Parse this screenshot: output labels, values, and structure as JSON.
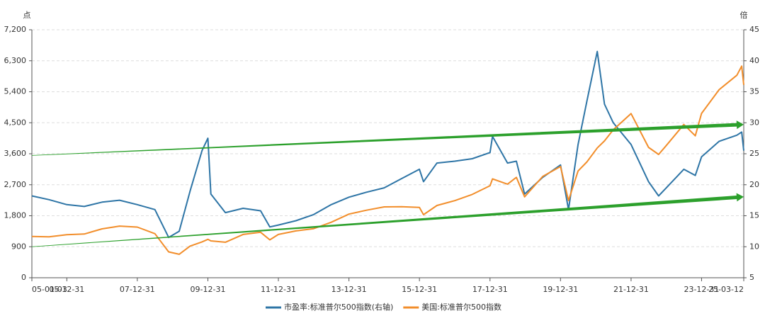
{
  "chart_data": {
    "type": "line",
    "y_unit": "点",
    "y2_unit": "倍",
    "x": [
      "05-01-03",
      "05-06-30",
      "05-12-31",
      "06-06-30",
      "06-12-31",
      "07-06-30",
      "07-12-31",
      "08-06-30",
      "08-11-20",
      "09-03-09",
      "09-06-30",
      "09-10-31",
      "09-12-31",
      "10-01-31",
      "10-06-30",
      "10-12-31",
      "11-06-30",
      "11-10-03",
      "11-12-31",
      "12-06-30",
      "12-12-31",
      "13-06-30",
      "13-12-31",
      "14-06-30",
      "14-12-31",
      "15-06-30",
      "15-12-31",
      "16-02-11",
      "16-06-30",
      "16-12-31",
      "17-06-30",
      "17-12-31",
      "18-01-26",
      "18-06-30",
      "18-09-30",
      "18-12-24",
      "19-06-30",
      "19-12-31",
      "20-03-23",
      "20-06-30",
      "20-09-30",
      "21-01-15",
      "21-03-31",
      "21-06-30",
      "21-12-31",
      "22-06-30",
      "22-10-12",
      "22-12-31",
      "23-06-30",
      "23-10-27",
      "23-12-31",
      "24-06-30",
      "24-12-31",
      "25-02-19",
      "25-03-12"
    ],
    "series": [
      {
        "name": "市盈率:标准普尔500指数(右轴)",
        "color": "#2e75a6",
        "axis": "y2",
        "values": [
          18.2,
          17.6,
          16.8,
          16.5,
          17.2,
          17.5,
          16.8,
          16.0,
          11.5,
          12.5,
          19,
          25.5,
          27.5,
          18.5,
          15.5,
          16.2,
          15.8,
          13.2,
          13.5,
          14.2,
          15.2,
          16.8,
          18.0,
          18.8,
          19.5,
          21,
          22.5,
          20.5,
          23.5,
          23.8,
          24.2,
          25.2,
          27.8,
          23.5,
          23.8,
          18.5,
          21.2,
          23.2,
          16.0,
          26.5,
          33.5,
          41.5,
          33.0,
          30,
          26.5,
          20.5,
          18.2,
          19.5,
          22.5,
          21.5,
          24.5,
          27,
          28,
          28.5,
          25.5
        ]
      },
      {
        "name": "美国:标准普尔500指数",
        "color": "#f28e2b",
        "values": [
          1200,
          1190,
          1250,
          1270,
          1420,
          1500,
          1470,
          1280,
          750,
          680,
          920,
          1040,
          1115,
          1070,
          1030,
          1257,
          1320,
          1100,
          1257,
          1360,
          1426,
          1610,
          1848,
          1960,
          2058,
          2063,
          2043,
          1830,
          2098,
          2238,
          2420,
          2673,
          2870,
          2718,
          2914,
          2350,
          2942,
          3230,
          2240,
          3100,
          3363,
          3768,
          3973,
          4298,
          4766,
          3785,
          3580,
          3840,
          4450,
          4120,
          4770,
          5460,
          5880,
          6144,
          5600
        ]
      }
    ],
    "trend_lines": [
      {
        "color": "#2ca02c",
        "x": [
          "05-01-03",
          "25-03-12"
        ],
        "values": [
          3550,
          4450
        ]
      },
      {
        "color": "#2ca02c",
        "x": [
          "05-01-03",
          "25-03-12"
        ],
        "values": [
          900,
          2350
        ]
      }
    ],
    "xlim": [
      "05-01-03",
      "25-03-12"
    ],
    "xticks": [
      "05-01-03",
      "05-12-31",
      "07-12-31",
      "09-12-31",
      "11-12-31",
      "13-12-31",
      "15-12-31",
      "17-12-31",
      "19-12-31",
      "21-12-31",
      "23-12-31",
      "25-03-12"
    ],
    "ylim": [
      0,
      7200
    ],
    "yticks": [
      0,
      {
        "value": 900,
        "label": "900"
      },
      {
        "value": 1800,
        "label": "1,800"
      },
      {
        "value": 2700,
        "label": "2,700"
      },
      {
        "value": 3600,
        "label": "3,600"
      },
      {
        "value": 4500,
        "label": "4,500"
      },
      {
        "value": 5400,
        "label": "5,400"
      },
      {
        "value": 6300,
        "label": "6,300"
      },
      {
        "value": 7200,
        "label": "7,200"
      }
    ],
    "y2lim": [
      5,
      45
    ],
    "y2ticks": [
      5,
      10,
      15,
      20,
      25,
      30,
      35,
      40,
      45
    ],
    "grid": true
  }
}
